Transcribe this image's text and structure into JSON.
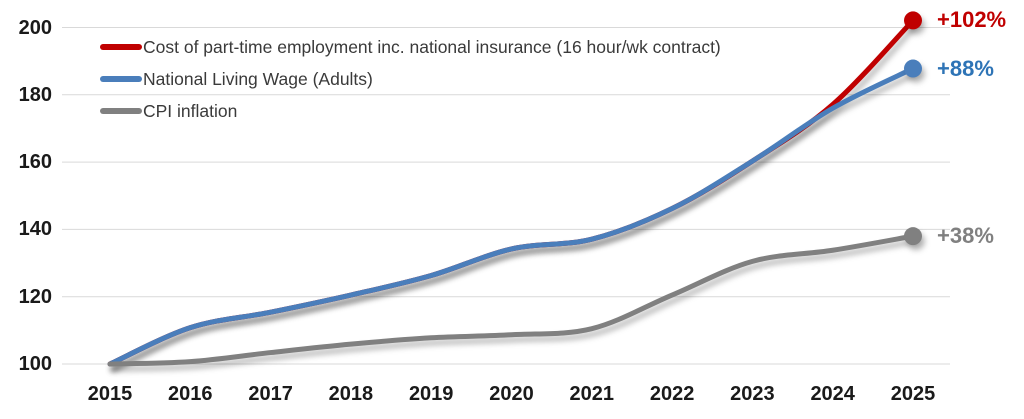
{
  "chart_data": {
    "type": "line",
    "title": "",
    "xlabel": "",
    "ylabel": "",
    "categories": [
      "2015",
      "2016",
      "2017",
      "2018",
      "2019",
      "2020",
      "2021",
      "2022",
      "2023",
      "2024",
      "2025"
    ],
    "yticks": [
      100,
      120,
      140,
      160,
      180,
      200
    ],
    "ylim": [
      100,
      200
    ],
    "grid": true,
    "legend_position": "top-left",
    "background_color": "#ffffff",
    "gridline_color": "#d9d9d9",
    "axis_label_color": "#1a1a1a",
    "series": [
      {
        "name": "Cost of part-time employment inc. national insurance (16 hour/wk contract)",
        "color": "#c00000",
        "end_label": "+102%",
        "end_label_color": "#c00000",
        "values": [
          100,
          110.8,
          115.4,
          120.5,
          126.3,
          134.2,
          137.1,
          146.2,
          160.3,
          177.1,
          202.1
        ]
      },
      {
        "name": "National Living Wage (Adults)",
        "color": "#4a7ebb",
        "end_label": "+88%",
        "end_label_color": "#2e74b6",
        "values": [
          100,
          110.8,
          115.4,
          120.5,
          126.3,
          134.2,
          137.1,
          146.2,
          160.3,
          176.0,
          187.8
        ]
      },
      {
        "name": "CPI inflation",
        "color": "#808080",
        "end_label": "+38%",
        "end_label_color": "#808080",
        "values": [
          100,
          100.7,
          103.4,
          105.9,
          107.8,
          108.7,
          110.5,
          120.5,
          130.5,
          133.8,
          138.0
        ]
      }
    ]
  }
}
